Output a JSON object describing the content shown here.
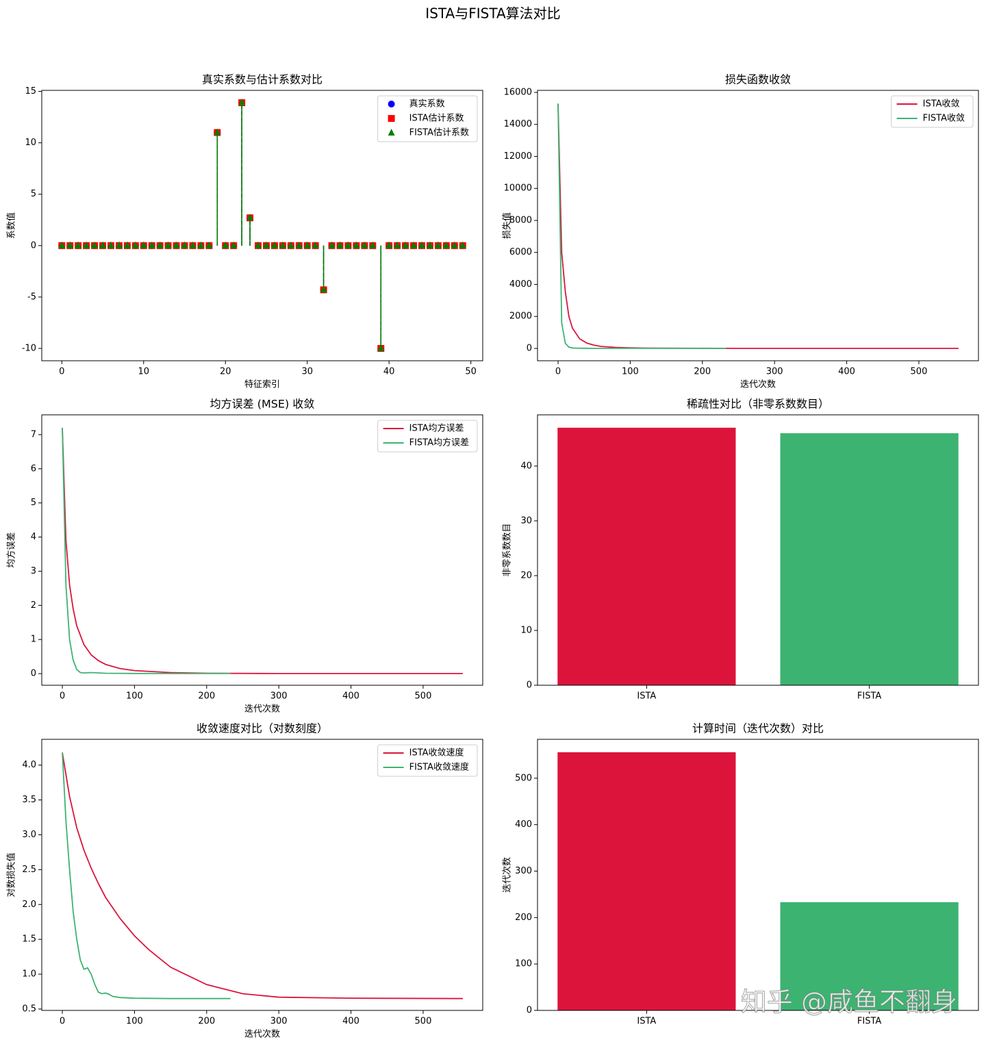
{
  "title": "ISTA与FISTA算法对比",
  "watermark": "知乎 @咸鱼不翻身",
  "chart_data": [
    {
      "type": "stem",
      "title": "真实系数与估计系数对比",
      "xlabel": "特征索引",
      "ylabel": "系数值",
      "xlim": [
        -2.45,
        51.45
      ],
      "ylim": [
        -11.2,
        15.1
      ],
      "xticks": [
        0,
        10,
        20,
        30,
        40,
        50
      ],
      "yticks": [
        -10,
        -5,
        0,
        5,
        10,
        15
      ],
      "legend": "upper right",
      "x": [
        0,
        1,
        2,
        3,
        4,
        5,
        6,
        7,
        8,
        9,
        10,
        11,
        12,
        13,
        14,
        15,
        16,
        17,
        18,
        19,
        20,
        21,
        22,
        23,
        24,
        25,
        26,
        27,
        28,
        29,
        30,
        31,
        32,
        33,
        34,
        35,
        36,
        37,
        38,
        39,
        40,
        41,
        42,
        43,
        44,
        45,
        46,
        47,
        48,
        49
      ],
      "series": [
        {
          "name": "真实系数",
          "color": "#0000ff",
          "marker": "circle",
          "values": [
            0,
            0,
            0,
            0,
            0,
            0,
            0,
            0,
            0,
            0,
            0,
            0,
            0,
            0,
            0,
            0,
            0,
            0,
            0,
            11.0,
            0,
            0,
            13.9,
            2.7,
            0,
            0,
            0,
            0,
            0,
            0,
            0,
            0,
            -4.3,
            0,
            0,
            0,
            0,
            0,
            0,
            -10.0,
            0,
            0,
            0,
            0,
            0,
            0,
            0,
            0,
            0,
            0
          ]
        },
        {
          "name": "ISTA估计系数",
          "color": "#ff0000",
          "marker": "square",
          "values": [
            0,
            0,
            0,
            0,
            0,
            0,
            0,
            0,
            0,
            0,
            0,
            0,
            0,
            0,
            0,
            0,
            0,
            0,
            0,
            11.0,
            0,
            0,
            13.9,
            2.7,
            0,
            0,
            0,
            0,
            0,
            0,
            0,
            0,
            -4.3,
            0,
            0,
            0,
            0,
            0,
            0,
            -10.0,
            0,
            0,
            0,
            0,
            0,
            0,
            0,
            0,
            0,
            0
          ]
        },
        {
          "name": "FISTA估计系数",
          "color": "#008000",
          "marker": "triangle",
          "values": [
            0,
            0,
            0,
            0,
            0,
            0,
            0,
            0,
            0,
            0,
            0,
            0,
            0,
            0,
            0,
            0,
            0,
            0,
            0,
            11.0,
            0,
            0,
            13.9,
            2.7,
            0,
            0,
            0,
            0,
            0,
            0,
            0,
            0,
            -4.3,
            0,
            0,
            0,
            0,
            0,
            0,
            -10.0,
            0,
            0,
            0,
            0,
            0,
            0,
            0,
            0,
            0,
            0
          ]
        }
      ]
    },
    {
      "type": "line",
      "title": "损失函数收敛",
      "xlabel": "迭代次数",
      "ylabel": "损失值",
      "xlim": [
        -28.5,
        582.6
      ],
      "ylim": [
        -770,
        16128
      ],
      "xticks": [
        0,
        100,
        200,
        300,
        400,
        500
      ],
      "yticks": [
        0,
        2000,
        4000,
        6000,
        8000,
        10000,
        12000,
        14000,
        16000
      ],
      "legend": "upper right",
      "series": [
        {
          "name": "ISTA收敛",
          "color": "#dc143c",
          "x": [
            0,
            5,
            10,
            15,
            20,
            30,
            40,
            50,
            60,
            80,
            100,
            120,
            150,
            200,
            250,
            300,
            400,
            555
          ],
          "values": [
            15300,
            6000,
            3550,
            2000,
            1260,
            600,
            330,
            200,
            126,
            63,
            35,
            22,
            12.6,
            7,
            5.2,
            4.7,
            4.5,
            4.5
          ]
        },
        {
          "name": "FISTA收敛",
          "color": "#3cb371",
          "x": [
            0,
            5,
            10,
            15,
            20,
            25,
            30,
            40,
            50,
            60,
            80,
            100,
            150,
            233
          ],
          "values": [
            15300,
            1600,
            320,
            80,
            32,
            16,
            12,
            10,
            5.5,
            5.4,
            4.6,
            4.5,
            4.5,
            4.5
          ]
        }
      ]
    },
    {
      "type": "line",
      "title": "均方误差 (MSE) 收敛",
      "xlabel": "迭代次数",
      "ylabel": "均方误差",
      "xlim": [
        -28.5,
        582.6
      ],
      "ylim": [
        -0.34,
        7.58
      ],
      "xticks": [
        0,
        100,
        200,
        300,
        400,
        500
      ],
      "yticks": [
        0,
        1,
        2,
        3,
        4,
        5,
        6,
        7
      ],
      "legend": "upper right",
      "series": [
        {
          "name": "ISTA均方误差",
          "color": "#dc143c",
          "x": [
            0,
            5,
            10,
            15,
            20,
            30,
            40,
            50,
            60,
            80,
            100,
            150,
            200,
            300,
            555
          ],
          "values": [
            7.2,
            3.9,
            2.6,
            1.9,
            1.4,
            0.85,
            0.55,
            0.38,
            0.27,
            0.15,
            0.09,
            0.03,
            0.01,
            0.003,
            0.002
          ]
        },
        {
          "name": "FISTA均方误差",
          "color": "#3cb371",
          "x": [
            0,
            5,
            10,
            15,
            20,
            25,
            30,
            40,
            60,
            100,
            233
          ],
          "values": [
            7.2,
            2.6,
            1.0,
            0.4,
            0.12,
            0.03,
            0.02,
            0.03,
            0.01,
            0.005,
            0.003
          ]
        }
      ]
    },
    {
      "type": "bar",
      "title": "稀疏性对比（非零系数数目）",
      "ylabel": "非零系数数目",
      "categories": [
        "ISTA",
        "FISTA"
      ],
      "values": [
        47,
        46
      ],
      "colors": [
        "#dc143c",
        "#3cb371"
      ],
      "ylim": [
        0,
        49.35
      ],
      "yticks": [
        0,
        10,
        20,
        30,
        40
      ]
    },
    {
      "type": "line",
      "title": "收敛速度对比（对数刻度）",
      "xlabel": "迭代次数",
      "ylabel": "对数损失值",
      "xlim": [
        -28.5,
        582.6
      ],
      "ylim": [
        0.48,
        4.37
      ],
      "xticks": [
        0,
        100,
        200,
        300,
        400,
        500
      ],
      "yticks": [
        0.5,
        {
          "value": 1,
          "label": "1.0"
        },
        1.5,
        {
          "value": 2,
          "label": "2.0"
        },
        2.5,
        {
          "value": 3,
          "label": "3.0"
        },
        3.5,
        {
          "value": 4,
          "label": "4.0"
        }
      ],
      "legend": "upper right",
      "series": [
        {
          "name": "ISTA收敛速度",
          "color": "#dc143c",
          "x": [
            0,
            10,
            20,
            30,
            40,
            50,
            60,
            80,
            100,
            120,
            150,
            200,
            250,
            300,
            400,
            555
          ],
          "values": [
            4.18,
            3.55,
            3.1,
            2.78,
            2.52,
            2.3,
            2.1,
            1.8,
            1.55,
            1.35,
            1.1,
            0.85,
            0.72,
            0.67,
            0.655,
            0.65
          ]
        },
        {
          "name": "FISTA收敛速度",
          "color": "#3cb371",
          "x": [
            0,
            5,
            10,
            15,
            20,
            25,
            30,
            35,
            40,
            45,
            50,
            55,
            60,
            65,
            70,
            80,
            100,
            150,
            233
          ],
          "values": [
            4.18,
            3.2,
            2.5,
            1.9,
            1.5,
            1.2,
            1.07,
            1.09,
            1.0,
            0.85,
            0.74,
            0.72,
            0.73,
            0.71,
            0.68,
            0.665,
            0.655,
            0.65,
            0.65
          ]
        }
      ]
    },
    {
      "type": "bar",
      "title": "计算时间（迭代次数）对比",
      "ylabel": "迭代次数",
      "categories": [
        "ISTA",
        "FISTA"
      ],
      "values": [
        556,
        233
      ],
      "colors": [
        "#dc143c",
        "#3cb371"
      ],
      "ylim": [
        0,
        583.8
      ],
      "yticks": [
        0,
        100,
        200,
        300,
        400,
        500
      ]
    }
  ]
}
